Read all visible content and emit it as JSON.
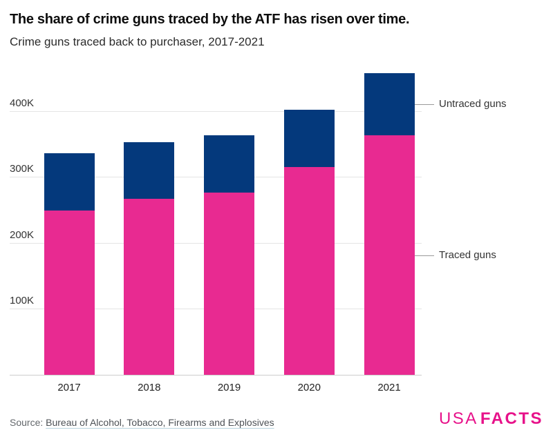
{
  "header": {
    "title": "The share of crime guns traced by the ATF has risen over time.",
    "subtitle": "Crime guns traced back to purchaser, 2017-2021"
  },
  "chart_data": {
    "type": "bar",
    "stacked": true,
    "title": "The share of crime guns traced by the ATF has risen over time.",
    "subtitle": "Crime guns traced back to purchaser, 2017-2021",
    "categories": [
      "2017",
      "2018",
      "2019",
      "2020",
      "2021"
    ],
    "series": [
      {
        "name": "Traced guns",
        "color": "#e82a91",
        "values": [
          250000,
          268000,
          277000,
          316000,
          364000
        ]
      },
      {
        "name": "Untraced guns",
        "color": "#04397c",
        "values": [
          87000,
          86000,
          87000,
          87000,
          94000
        ]
      }
    ],
    "totals": [
      337000,
      354000,
      364000,
      403000,
      458000
    ],
    "xlabel": "",
    "ylabel": "",
    "ylim": [
      0,
      470000
    ],
    "yticks": [
      {
        "value": 100000,
        "label": "100K"
      },
      {
        "value": 200000,
        "label": "200K"
      },
      {
        "value": 300000,
        "label": "300K"
      },
      {
        "value": 400000,
        "label": "400K"
      }
    ],
    "grid": "horizontal",
    "legend_position": "right-annotations",
    "annotations": [
      {
        "label": "Untraced guns",
        "series": "Untraced guns"
      },
      {
        "label": "Traced guns",
        "series": "Traced guns"
      }
    ]
  },
  "footer": {
    "source_prefix": "Source:",
    "source_link": "Bureau of Alcohol, Tobacco, Firearms and Explosives",
    "logo": {
      "part1": "USA",
      "part2": "FACTS",
      "color": "#e7128a"
    }
  },
  "colors": {
    "traced": "#e82a91",
    "untraced": "#04397c",
    "gridline": "#e4e4e4",
    "axis_line": "#cccccc",
    "leader_line": "#999999"
  }
}
